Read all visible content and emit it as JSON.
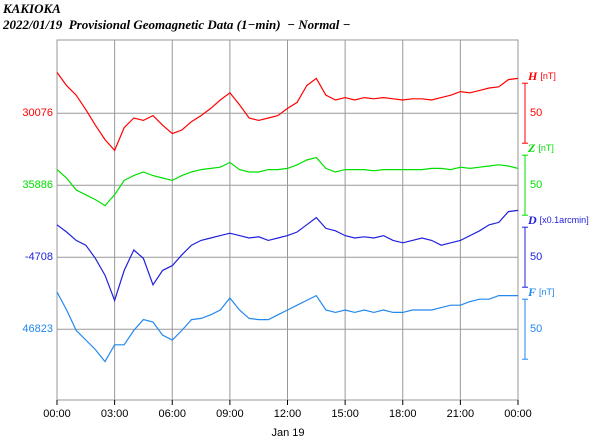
{
  "chart_data": {
    "type": "line",
    "title": "KAKIOKA",
    "subtitle": "2022/01/19  Provisional Geomagnetic Data (1−min)  − Normal −",
    "xlabel": "Jan 19",
    "x": [
      0,
      0.5,
      1,
      1.5,
      2,
      2.5,
      3,
      3.5,
      4,
      4.5,
      5,
      5.5,
      6,
      6.5,
      7,
      7.5,
      8,
      8.5,
      9,
      9.5,
      10,
      10.5,
      11,
      11.5,
      12,
      12.5,
      13,
      13.5,
      14,
      14.5,
      15,
      15.5,
      16,
      16.5,
      17,
      17.5,
      18,
      18.5,
      19,
      19.5,
      20,
      20.5,
      21,
      21.5,
      22,
      22.5,
      23,
      23.5,
      24
    ],
    "xlim": [
      0,
      24
    ],
    "xticks": [
      {
        "value": 0,
        "label": "00:00"
      },
      {
        "value": 3,
        "label": "03:00"
      },
      {
        "value": 6,
        "label": "06:00"
      },
      {
        "value": 9,
        "label": "09:00"
      },
      {
        "value": 12,
        "label": "12:00"
      },
      {
        "value": 15,
        "label": "15:00"
      },
      {
        "value": 18,
        "label": "18:00"
      },
      {
        "value": 21,
        "label": "21:00"
      },
      {
        "value": 24,
        "label": "00:00"
      }
    ],
    "grid": true,
    "series": [
      {
        "name": "H",
        "unit": "[nT]",
        "color": "#ff0000",
        "ylim": [
          29837,
          30137
        ],
        "yticks": [
          30076
        ],
        "scale": 50,
        "values": [
          30110,
          30099,
          30091,
          30079,
          30066,
          30054,
          30045,
          30064,
          30072,
          30070,
          30074,
          30066,
          30059,
          30062,
          30069,
          30074,
          30080,
          30087,
          30093,
          30083,
          30072,
          30070,
          30072,
          30074,
          30080,
          30085,
          30099,
          30105,
          30091,
          30087,
          30089,
          30087,
          30089,
          30088,
          30089,
          30088,
          30087,
          30088,
          30088,
          30087,
          30089,
          30091,
          30094,
          30093,
          30095,
          30097,
          30098,
          30104,
          30105
        ]
      },
      {
        "name": "Z",
        "unit": "[nT]",
        "color": "#00e000",
        "ylim": [
          35707,
          36007
        ],
        "yticks": [
          35886
        ],
        "scale": 50,
        "values": [
          35899,
          35892,
          35882,
          35878,
          35874,
          35869,
          35878,
          35890,
          35894,
          35897,
          35894,
          35892,
          35890,
          35894,
          35897,
          35899,
          35900,
          35901,
          35905,
          35899,
          35897,
          35897,
          35899,
          35899,
          35900,
          35903,
          35907,
          35909,
          35900,
          35897,
          35899,
          35899,
          35899,
          35898,
          35899,
          35899,
          35899,
          35899,
          35899,
          35900,
          35900,
          35899,
          35901,
          35900,
          35901,
          35902,
          35903,
          35902,
          35900
        ]
      },
      {
        "name": "D",
        "unit": "[x0.1arcmin]",
        "color": "#2020dd",
        "ylim": [
          -4827,
          -4527
        ],
        "yticks": [
          -4708
        ],
        "scale": 50,
        "values": [
          -4681,
          -4687,
          -4694,
          -4698,
          -4709,
          -4723,
          -4744,
          -4719,
          -4702,
          -4709,
          -4731,
          -4719,
          -4715,
          -4706,
          -4698,
          -4694,
          -4692,
          -4690,
          -4688,
          -4690,
          -4692,
          -4691,
          -4694,
          -4692,
          -4690,
          -4687,
          -4681,
          -4675,
          -4684,
          -4686,
          -4690,
          -4692,
          -4691,
          -4692,
          -4690,
          -4694,
          -4696,
          -4694,
          -4692,
          -4694,
          -4698,
          -4696,
          -4694,
          -4690,
          -4686,
          -4681,
          -4679,
          -4670,
          -4669
        ]
      },
      {
        "name": "F",
        "unit": "[nT]",
        "color": "#2288ee",
        "ylim": [
          46764,
          47064
        ],
        "yticks": [
          46823
        ],
        "scale": 50,
        "values": [
          46854,
          46839,
          46822,
          46814,
          46806,
          46796,
          46810,
          46810,
          46822,
          46831,
          46829,
          46818,
          46814,
          46822,
          46831,
          46832,
          46835,
          46839,
          46849,
          46839,
          46832,
          46831,
          46831,
          46835,
          46839,
          46843,
          46847,
          46851,
          46839,
          46837,
          46839,
          46837,
          46839,
          46837,
          46839,
          46837,
          46837,
          46839,
          46839,
          46839,
          46841,
          46843,
          46843,
          46846,
          46848,
          46848,
          46851,
          46851,
          46851
        ]
      }
    ]
  }
}
